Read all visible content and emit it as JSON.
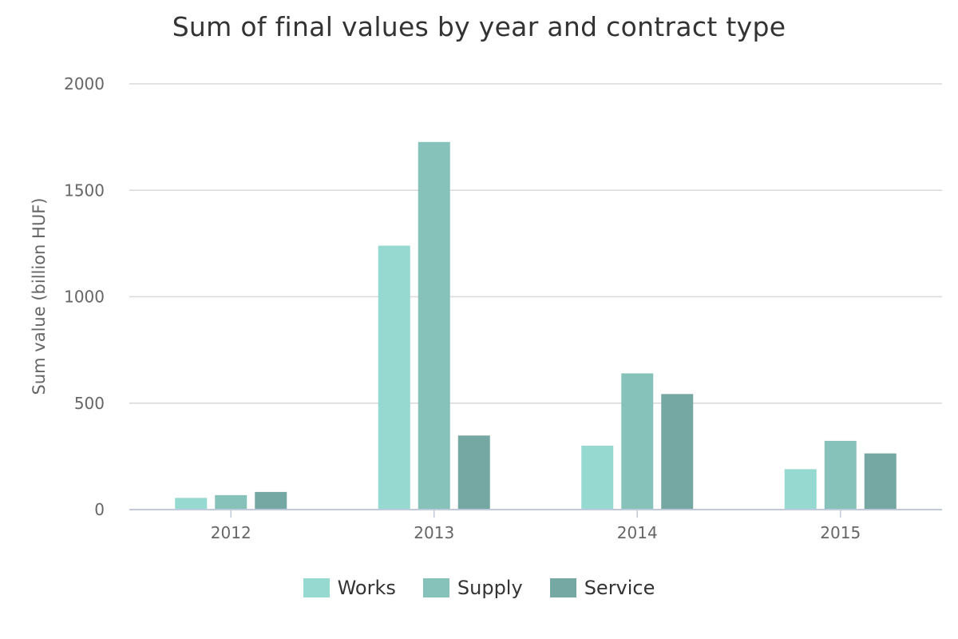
{
  "chart_data": {
    "type": "bar",
    "title": "Sum of final values by year and contract type",
    "xlabel": "",
    "ylabel": "Sum value (billion HUF)",
    "ylim": [
      0,
      2000
    ],
    "yticks": [
      0,
      500,
      1000,
      1500,
      2000
    ],
    "grid": true,
    "legend_position": "bottom",
    "categories": [
      "2012",
      "2013",
      "2014",
      "2015"
    ],
    "series": [
      {
        "name": "Works",
        "color": "#96d9d1",
        "values": [
          55,
          1240,
          300,
          190
        ]
      },
      {
        "name": "Supply",
        "color": "#86c2ba",
        "values": [
          68,
          1727,
          640,
          323
        ]
      },
      {
        "name": "Service",
        "color": "#76a8a3",
        "values": [
          83,
          348,
          543,
          264
        ]
      }
    ]
  }
}
